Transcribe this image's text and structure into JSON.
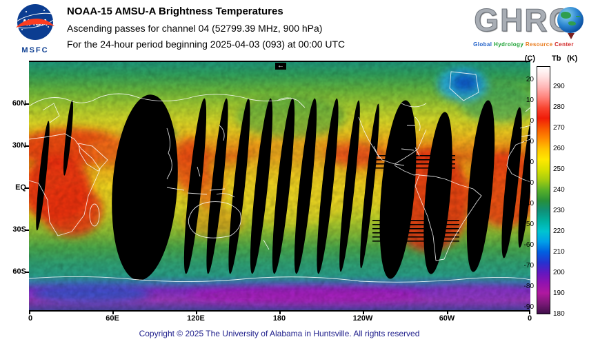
{
  "header": {
    "nasa": {
      "logo_text": "NASA",
      "center_label": "MSFC"
    },
    "title_line1": "NOAA-15 AMSU-A Brightness Temperatures",
    "title_line2": "Ascending passes for channel 04 (52799.39 MHz, 900 hPa)",
    "title_line3": "For the 24-hour period beginning 2025-04-03 (093) at 00:00 UTC",
    "ghrc": {
      "logo_text": "GHRC",
      "subtitle_words": [
        "Global",
        "Hydrology",
        "Resource",
        "Center"
      ]
    }
  },
  "map": {
    "lat_labels": [
      "60N",
      "30N",
      "EQ",
      "30S",
      "60S"
    ],
    "lon_labels": [
      "0",
      "60E",
      "120E",
      "180",
      "120W",
      "60W",
      "0"
    ],
    "arrow": "←"
  },
  "colorbar": {
    "unit_c": "(C)",
    "unit_tb": "Tb",
    "unit_k": "(K)",
    "ticks_c": [
      "20",
      "10",
      "0",
      "-10",
      "-20",
      "-30",
      "-40",
      "-50",
      "-60",
      "-70",
      "-80",
      "-90"
    ],
    "ticks_k": [
      "290",
      "280",
      "270",
      "260",
      "250",
      "240",
      "230",
      "220",
      "210",
      "200",
      "190",
      "180"
    ],
    "range_k": [
      180,
      300
    ],
    "gradient": [
      "#ffffff",
      "#ffe0e0",
      "#ffb4b4",
      "#ff8078",
      "#f84430",
      "#f01c08",
      "#f85800",
      "#ff8c00",
      "#ffc400",
      "#ffe800",
      "#d8e000",
      "#a4cc10",
      "#58b028",
      "#289038",
      "#109078",
      "#00b0a0",
      "#00c4d0",
      "#00a0e8",
      "#0060e0",
      "#2434d0",
      "#6018c0",
      "#9012b0",
      "#b018a0",
      "#7c1878",
      "#40104a"
    ]
  },
  "colors": {
    "nasa_blue": "#0b3d91",
    "nasa_red": "#fc3d21",
    "copyright_text": "#20208c",
    "swath_gap": "#000000"
  },
  "footer": {
    "copyright": "Copyright © 2025 The University of Alabama in Huntsville. All rights reserved"
  }
}
